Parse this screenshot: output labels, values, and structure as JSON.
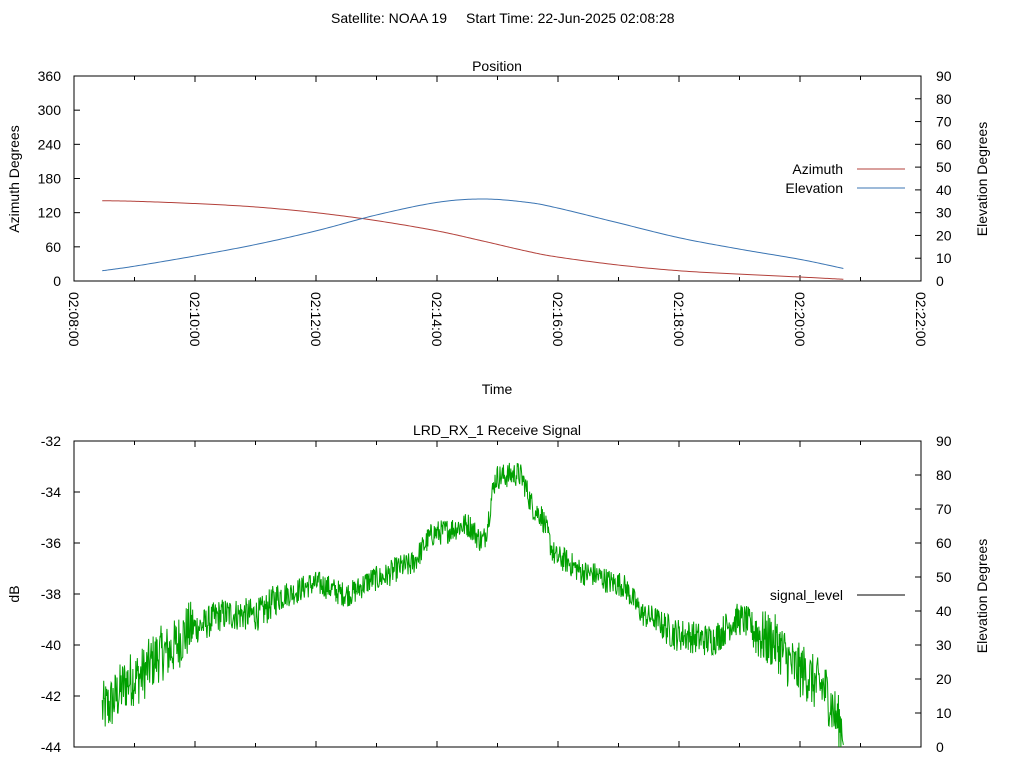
{
  "header": {
    "satellite_text": "Satellite: NOAA 19",
    "start_time_text": "Start Time: 22-Jun-2025 02:08:28"
  },
  "chart_data": [
    {
      "type": "line",
      "title": "Position",
      "xlabel": "Time",
      "ylabel": "Azimuth Degrees",
      "y2label": "Elevation Degrees",
      "xlim": [
        "02:08:00",
        "02:22:00"
      ],
      "x_ticks": [
        "02:08:00",
        "02:10:00",
        "02:12:00",
        "02:14:00",
        "02:16:00",
        "02:18:00",
        "02:20:00",
        "02:22:00"
      ],
      "ylim": [
        0,
        360
      ],
      "y_ticks": [
        0,
        60,
        120,
        180,
        240,
        300,
        360
      ],
      "y2lim": [
        0,
        90
      ],
      "y2_ticks": [
        0,
        10,
        20,
        30,
        40,
        50,
        60,
        70,
        80,
        90
      ],
      "grid": false,
      "legend_position": "right",
      "series": [
        {
          "name": "Azimuth",
          "axis": "y",
          "color": "#b3413b",
          "x": [
            "02:08:28",
            "02:09:00",
            "02:10:00",
            "02:11:00",
            "02:12:00",
            "02:13:00",
            "02:14:00",
            "02:14:46",
            "02:15:30",
            "02:16:00",
            "02:17:00",
            "02:18:00",
            "02:19:00",
            "02:20:00",
            "02:20:43"
          ],
          "values": [
            141,
            140,
            136,
            130,
            120,
            106,
            88,
            70,
            52,
            42,
            28,
            18,
            12,
            7,
            3
          ]
        },
        {
          "name": "Elevation",
          "axis": "y2",
          "color": "#3b75b3",
          "x": [
            "02:08:28",
            "02:09:00",
            "02:10:00",
            "02:11:00",
            "02:12:00",
            "02:13:00",
            "02:14:00",
            "02:14:46",
            "02:15:30",
            "02:16:00",
            "02:17:00",
            "02:18:00",
            "02:19:00",
            "02:20:00",
            "02:20:43"
          ],
          "values": [
            4.5,
            6.5,
            11,
            16,
            22,
            29,
            34.5,
            36,
            34.5,
            32,
            25.5,
            19,
            14,
            9.5,
            5.5
          ]
        }
      ]
    },
    {
      "type": "line",
      "title": "LRD_RX_1 Receive Signal",
      "ylabel": "dB",
      "y2label": "Elevation Degrees",
      "xlim": [
        "02:08:00",
        "02:22:00"
      ],
      "ylim": [
        -44,
        -32
      ],
      "y_ticks": [
        -44,
        -42,
        -40,
        -38,
        -36,
        -34,
        -32
      ],
      "y2lim": [
        0,
        90
      ],
      "y2_ticks": [
        0,
        10,
        20,
        30,
        40,
        50,
        60,
        70,
        80,
        90
      ],
      "grid": false,
      "legend_position": "right",
      "series": [
        {
          "name": "signal_level",
          "axis": "y",
          "color": "#00a000",
          "legend_color": "#000000",
          "noise_db": 0.5,
          "x": [
            "02:08:28",
            "02:09:00",
            "02:09:30",
            "02:10:00",
            "02:10:30",
            "02:11:00",
            "02:11:30",
            "02:12:00",
            "02:12:30",
            "02:13:00",
            "02:13:30",
            "02:14:00",
            "02:14:30",
            "02:14:45",
            "02:15:00",
            "02:15:20",
            "02:15:40",
            "02:16:00",
            "02:16:30",
            "02:17:00",
            "02:17:30",
            "02:18:00",
            "02:18:30",
            "02:19:00",
            "02:19:30",
            "02:20:00",
            "02:20:20",
            "02:20:43"
          ],
          "values": [
            -42.5,
            -41.3,
            -40.3,
            -39.3,
            -38.8,
            -38.8,
            -38.0,
            -37.6,
            -38.0,
            -37.4,
            -36.9,
            -35.6,
            -35.3,
            -35.9,
            -33.4,
            -33.3,
            -34.8,
            -36.6,
            -37.2,
            -37.6,
            -38.9,
            -39.6,
            -39.8,
            -39.0,
            -39.8,
            -41.0,
            -41.6,
            -43.2
          ]
        }
      ]
    }
  ]
}
